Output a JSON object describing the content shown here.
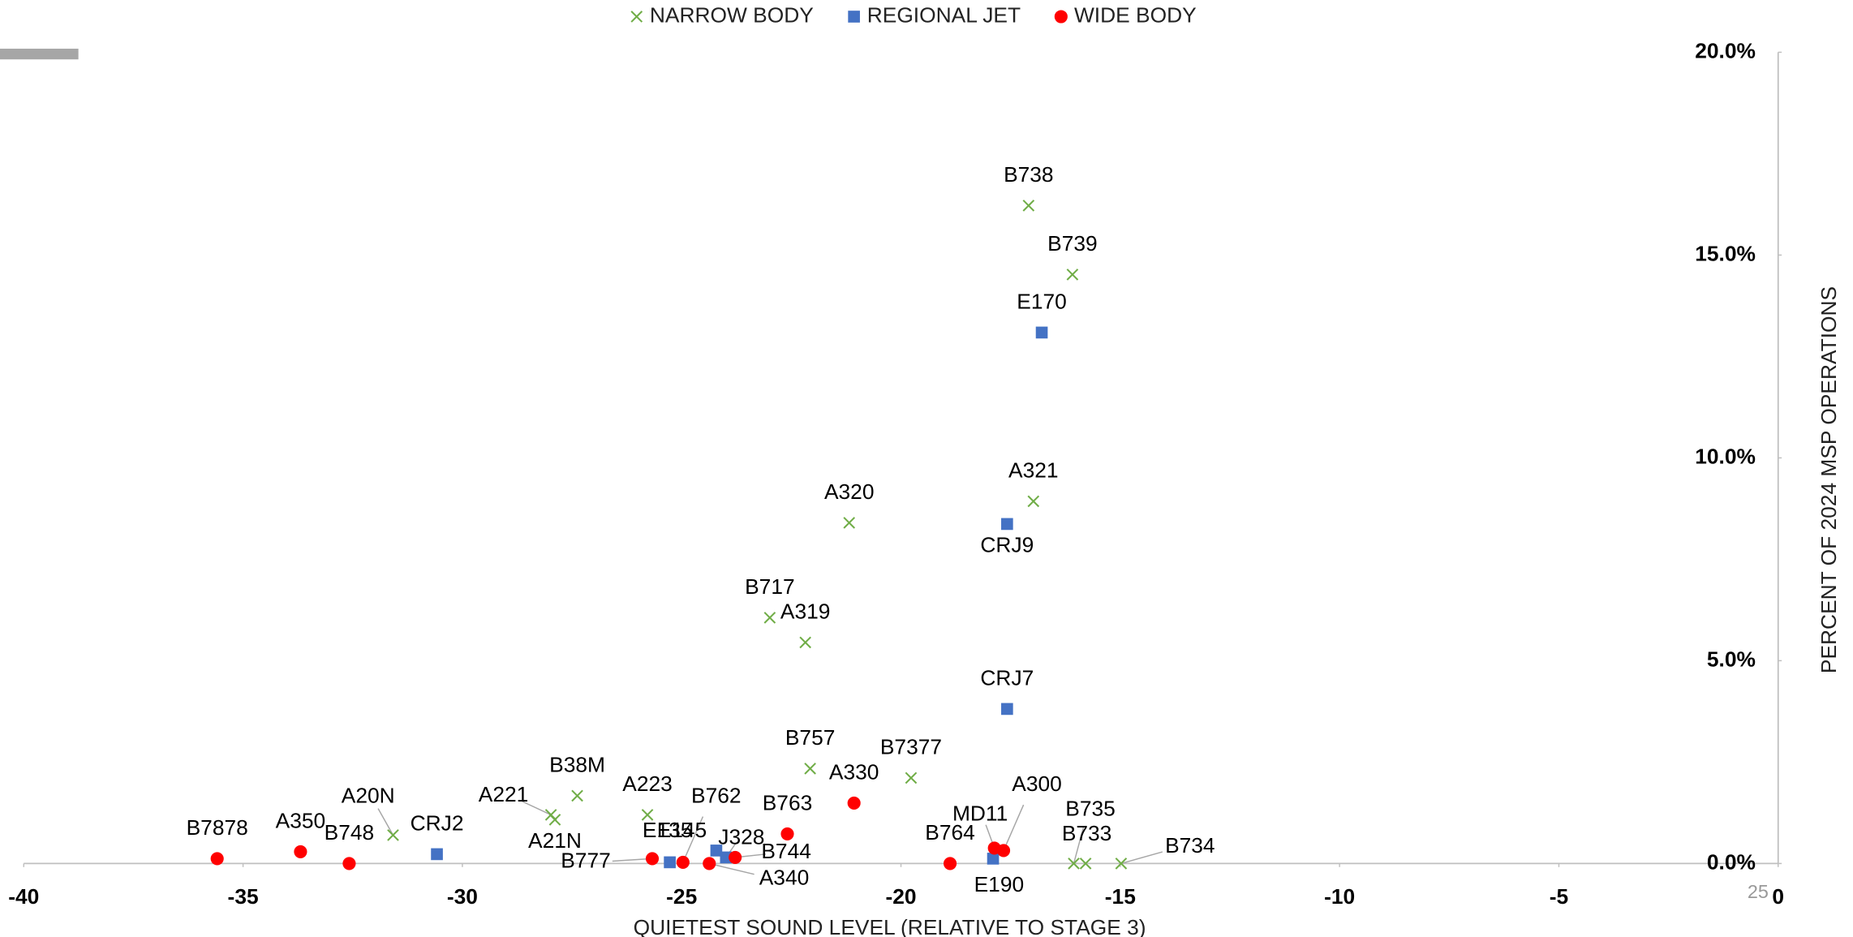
{
  "chart_data": {
    "type": "scatter",
    "x_label": "QUIETEST SOUND LEVEL (RELATIVE TO STAGE 3)",
    "y_label": "PERCENT OF 2024 MSP OPERATIONS",
    "xlim": [
      -40,
      0
    ],
    "xticks": [
      -40,
      -35,
      -30,
      -25,
      -20,
      -15,
      -10,
      -5,
      0
    ],
    "ylim": [
      0,
      20
    ],
    "yticks": [
      {
        "value": 0,
        "label": "0.0%"
      },
      {
        "value": 5,
        "label": "5.0%"
      },
      {
        "value": 10,
        "label": "10.0%"
      },
      {
        "value": 15,
        "label": "15.0%"
      },
      {
        "value": 20,
        "label": "20.0%"
      }
    ],
    "legend": "top",
    "series": [
      {
        "name": "NARROW BODY",
        "color": "#70ad47",
        "marker": "x",
        "labels": [
          "B738",
          "B739",
          "A321",
          "A320",
          "B717",
          "A319",
          "B757",
          "B7377",
          "B38M",
          "A223",
          "A221",
          "A21N",
          "A20N",
          "B735",
          "B733",
          "B734"
        ],
        "x": [
          -17.09,
          -16.09,
          -16.98,
          -21.18,
          -22.99,
          -22.18,
          -22.07,
          -19.77,
          -27.38,
          -25.78,
          -27.98,
          -27.89,
          -31.58,
          -16.06,
          -15.79,
          -14.98
        ],
        "values": [
          16.22,
          14.52,
          8.93,
          8.4,
          6.06,
          5.45,
          2.34,
          2.11,
          1.67,
          1.2,
          1.2,
          1.08,
          0.7,
          0,
          0,
          0
        ]
      },
      {
        "name": "REGIONAL JET",
        "color": "#4472c4",
        "marker": "square",
        "labels": [
          "E170",
          "CRJ9",
          "CRJ7",
          "CRJ2",
          "E135",
          "E145",
          "J328",
          "E190"
        ],
        "x": [
          -16.79,
          -17.58,
          -17.58,
          -30.58,
          -25.27,
          -24.21,
          -23.99,
          -17.9
        ],
        "values": [
          13.09,
          8.37,
          3.81,
          0.23,
          0.03,
          0.32,
          0.15,
          0.12
        ]
      },
      {
        "name": "WIDE BODY",
        "color": "#ff0000",
        "marker": "circle",
        "labels": [
          "B7878",
          "A350",
          "B748",
          "B777",
          "B762",
          "A340",
          "B744",
          "B763",
          "A330",
          "B764",
          "MD11",
          "A300"
        ],
        "x": [
          -35.59,
          -33.69,
          -32.58,
          -25.67,
          -24.97,
          -24.37,
          -23.78,
          -22.59,
          -21.07,
          -18.88,
          -17.87,
          -17.66
        ],
        "values": [
          0.12,
          0.29,
          0,
          0.12,
          0.03,
          0,
          0.15,
          0.73,
          1.49,
          0,
          0.38,
          0.32
        ]
      }
    ]
  },
  "page_number": "25"
}
